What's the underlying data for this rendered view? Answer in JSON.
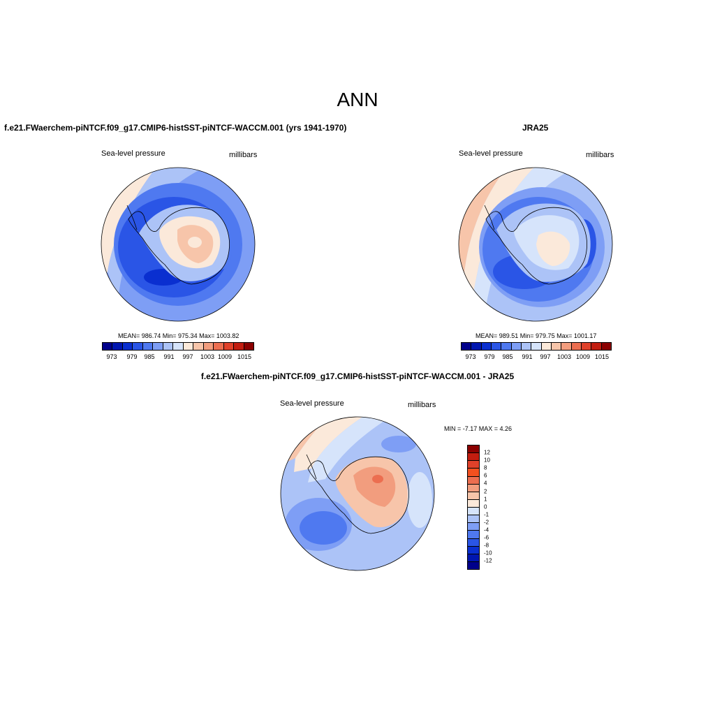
{
  "title": "ANN",
  "field_label": "Sea-level pressure",
  "units_label": "millibars",
  "palette": [
    "#00008b",
    "#0016b0",
    "#0a2fd0",
    "#2a55e6",
    "#4f79f0",
    "#7e9ef5",
    "#acc3f7",
    "#d6e4fb",
    "#fbe9da",
    "#f7c5aa",
    "#f29d7e",
    "#ec6e50",
    "#e0412a",
    "#c21d10",
    "#8b0000"
  ],
  "panels": {
    "model": {
      "title": "f.e21.FWaerchem-piNTCF.f09_g17.CMIP6-histSST-piNTCF-WACCM.001 (yrs 1941-1970)",
      "stats": "MEAN= 986.74  Min= 975.34  Max= 1003.82",
      "colorbar_labels": [
        "973",
        "979",
        "985",
        "991",
        "997",
        "1003",
        "1009",
        "1015"
      ]
    },
    "obs": {
      "title": "JRA25",
      "stats": "MEAN= 989.51  Min= 979.75  Max= 1001.17",
      "colorbar_labels": [
        "973",
        "979",
        "985",
        "991",
        "997",
        "1003",
        "1009",
        "1015"
      ]
    },
    "diff": {
      "title": "f.e21.FWaerchem-piNTCF.f09_g17.CMIP6-histSST-piNTCF-WACCM.001 - JRA25",
      "stats": "MIN =  -7.17 MAX =   4.26",
      "colorbar_labels": [
        "12",
        "10",
        "8",
        "6",
        "4",
        "2",
        "1",
        "0",
        "-1",
        "-2",
        "-4",
        "-6",
        "-8",
        "-10",
        "-12"
      ],
      "palette": [
        "#8b0000",
        "#c21d10",
        "#e0412a",
        "#f2501f",
        "#ec6e50",
        "#f29d7e",
        "#f7c5aa",
        "#fbe9da",
        "#d6e4fb",
        "#acc3f7",
        "#7e9ef5",
        "#4f79f0",
        "#2a55e6",
        "#0a2fd0",
        "#0016b0",
        "#00008b"
      ]
    }
  }
}
